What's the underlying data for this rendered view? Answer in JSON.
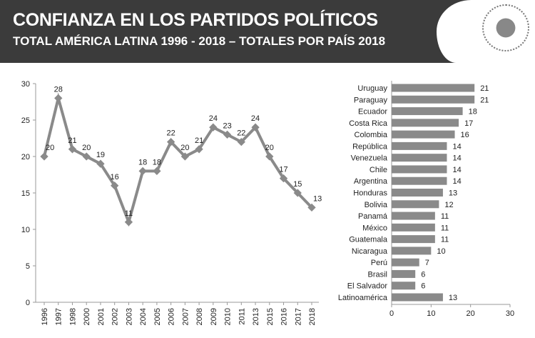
{
  "header": {
    "title": "CONFIANZA EN LOS PARTIDOS POLÍTICOS",
    "subtitle": "TOTAL AMÉRICA LATINA 1996 - 2018 – TOTALES POR PAÍS 2018",
    "logo_text": "LATINOBARÓMETRO 1995-2015"
  },
  "colors": {
    "header_bg": "#3b3b3b",
    "line": "#8a8a8a",
    "bar": "#8a8a8a"
  },
  "chart_data": [
    {
      "type": "line",
      "x": [
        "1996",
        "1997",
        "1998",
        "2000",
        "2001",
        "2002",
        "2003",
        "2004",
        "2005",
        "2006",
        "2007",
        "2008",
        "2009",
        "2010",
        "2011",
        "2013",
        "2015",
        "2016",
        "2017",
        "2018"
      ],
      "values": [
        20,
        28,
        21,
        20,
        19,
        16,
        11,
        18,
        18,
        22,
        20,
        21,
        24,
        23,
        22,
        24,
        20,
        17,
        15,
        13
      ],
      "ylim": [
        0,
        30
      ],
      "yticks": [
        "0",
        "5",
        "10",
        "15",
        "20",
        "25",
        "30"
      ],
      "grid": false,
      "data_labels": true
    },
    {
      "type": "bar",
      "orientation": "horizontal",
      "categories": [
        "Uruguay",
        "Paraguay",
        "Ecuador",
        "Costa Rica",
        "Colombia",
        "República",
        "Venezuela",
        "Chile",
        "Argentina",
        "Honduras",
        "Bolivia",
        "Panamá",
        "México",
        "Guatemala",
        "Nicaragua",
        "Perú",
        "Brasil",
        "El Salvador",
        "Latinoamérica"
      ],
      "values": [
        21,
        21,
        18,
        17,
        16,
        14,
        14,
        14,
        14,
        13,
        12,
        11,
        11,
        11,
        10,
        7,
        6,
        6,
        13
      ],
      "xlim": [
        0,
        30
      ],
      "xticks": [
        "0",
        "10",
        "20",
        "30"
      ],
      "grid": false,
      "data_labels": true
    }
  ]
}
